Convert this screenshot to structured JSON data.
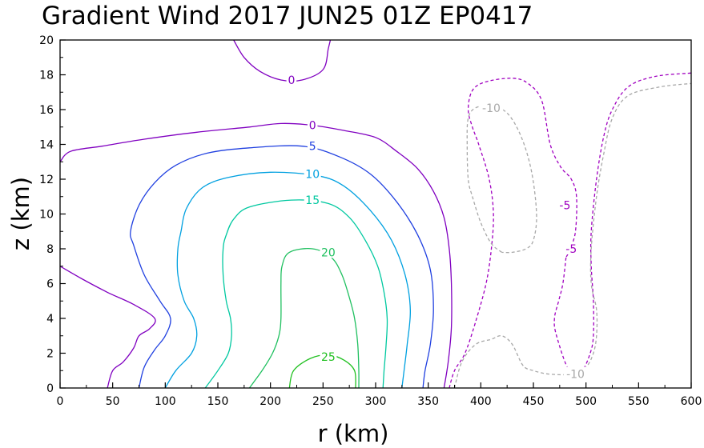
{
  "chart_data": {
    "type": "contour",
    "title": "Gradient Wind 2017 JUN25 01Z   EP0417",
    "xlabel": "r (km)",
    "ylabel": "z (km)",
    "xlim": [
      0,
      600
    ],
    "ylim": [
      0,
      20
    ],
    "x_ticks": [
      "0",
      "50",
      "100",
      "150",
      "200",
      "250",
      "300",
      "350",
      "400",
      "450",
      "500",
      "550",
      "600"
    ],
    "y_ticks": [
      "0",
      "2",
      "4",
      "6",
      "8",
      "10",
      "12",
      "14",
      "16",
      "18",
      "20"
    ],
    "grid": false,
    "contours": [
      {
        "level": 0,
        "color": "#8000c0",
        "dashed": false,
        "label": "0",
        "points": [
          [
            0,
            13
          ],
          [
            10,
            13.6
          ],
          [
            40,
            13.9
          ],
          [
            80,
            14.3
          ],
          [
            130,
            14.7
          ],
          [
            180,
            15
          ],
          [
            210,
            15.2
          ],
          [
            240,
            15.1
          ],
          [
            270,
            14.8
          ],
          [
            300,
            14.4
          ],
          [
            320,
            13.6
          ],
          [
            340,
            12.6
          ],
          [
            355,
            11.3
          ],
          [
            365,
            9.8
          ],
          [
            370,
            8
          ],
          [
            372,
            6
          ],
          [
            372,
            3.5
          ],
          [
            369,
            1.5
          ],
          [
            365,
            0
          ]
        ],
        "label_at": [
          240,
          15.1
        ]
      },
      {
        "level": 0,
        "color": "#8000c0",
        "dashed": false,
        "label": "0",
        "points": [
          [
            0,
            7
          ],
          [
            20,
            6.3
          ],
          [
            45,
            5.5
          ],
          [
            70,
            4.8
          ],
          [
            90,
            4
          ],
          [
            85,
            3.4
          ],
          [
            75,
            3
          ],
          [
            70,
            2.3
          ],
          [
            60,
            1.5
          ],
          [
            50,
            1
          ],
          [
            45,
            0
          ]
        ],
        "label_at": null
      },
      {
        "level": 0,
        "color": "#8000c0",
        "dashed": false,
        "label": "0",
        "points": [
          [
            165,
            20
          ],
          [
            175,
            19
          ],
          [
            190,
            18.2
          ],
          [
            210,
            17.7
          ],
          [
            230,
            17.7
          ],
          [
            250,
            18.3
          ],
          [
            255,
            19.5
          ],
          [
            257,
            20
          ]
        ],
        "label_at": [
          220,
          17.7
        ]
      },
      {
        "level": 5,
        "color": "#2040e0",
        "dashed": false,
        "label": "5",
        "points": [
          [
            75,
            0
          ],
          [
            80,
            1.2
          ],
          [
            90,
            2.2
          ],
          [
            100,
            3
          ],
          [
            105,
            4
          ],
          [
            95,
            5
          ],
          [
            80,
            6.5
          ],
          [
            70,
            8.2
          ],
          [
            67,
            9
          ],
          [
            75,
            10.5
          ],
          [
            90,
            11.8
          ],
          [
            110,
            12.8
          ],
          [
            140,
            13.5
          ],
          [
            180,
            13.8
          ],
          [
            230,
            13.9
          ],
          [
            265,
            13.3
          ],
          [
            295,
            12.3
          ],
          [
            320,
            10.7
          ],
          [
            340,
            8.8
          ],
          [
            352,
            6.8
          ],
          [
            355,
            4.5
          ],
          [
            352,
            2.5
          ],
          [
            347,
            1
          ],
          [
            345,
            0
          ]
        ],
        "label_at": [
          240,
          13.9
        ]
      },
      {
        "level": 10,
        "color": "#00a0e0",
        "dashed": false,
        "label": "10",
        "points": [
          [
            100,
            0
          ],
          [
            110,
            1
          ],
          [
            125,
            2
          ],
          [
            130,
            3
          ],
          [
            127,
            4
          ],
          [
            118,
            5
          ],
          [
            112,
            6.5
          ],
          [
            112,
            8
          ],
          [
            115,
            9
          ],
          [
            120,
            10.3
          ],
          [
            135,
            11.5
          ],
          [
            160,
            12.1
          ],
          [
            200,
            12.4
          ],
          [
            245,
            12.2
          ],
          [
            270,
            11.6
          ],
          [
            295,
            10.2
          ],
          [
            315,
            8.5
          ],
          [
            328,
            6.5
          ],
          [
            333,
            4.5
          ],
          [
            330,
            2.5
          ],
          [
            327,
            1
          ],
          [
            325,
            0
          ]
        ],
        "label_at": [
          240,
          12.3
        ]
      },
      {
        "level": 15,
        "color": "#00c8a0",
        "dashed": false,
        "label": "15",
        "points": [
          [
            138,
            0
          ],
          [
            150,
            1
          ],
          [
            160,
            2
          ],
          [
            163,
            3
          ],
          [
            162,
            4
          ],
          [
            158,
            5
          ],
          [
            155,
            6.5
          ],
          [
            155,
            8
          ],
          [
            158,
            8.8
          ],
          [
            165,
            9.7
          ],
          [
            180,
            10.4
          ],
          [
            220,
            10.8
          ],
          [
            255,
            10.6
          ],
          [
            275,
            9.8
          ],
          [
            290,
            8.5
          ],
          [
            302,
            7
          ],
          [
            308,
            5.5
          ],
          [
            311,
            4
          ],
          [
            310,
            2.5
          ],
          [
            308,
            1
          ],
          [
            307,
            0
          ]
        ],
        "label_at": [
          240,
          10.8
        ]
      },
      {
        "level": 20,
        "color": "#20c060",
        "dashed": false,
        "label": "20",
        "points": [
          [
            180,
            0
          ],
          [
            192,
            1
          ],
          [
            202,
            2
          ],
          [
            208,
            3
          ],
          [
            210,
            4
          ],
          [
            210,
            6
          ],
          [
            211,
            7
          ],
          [
            218,
            7.8
          ],
          [
            240,
            8
          ],
          [
            258,
            7.5
          ],
          [
            268,
            6.5
          ],
          [
            275,
            5.2
          ],
          [
            280,
            4
          ],
          [
            283,
            2.5
          ],
          [
            284,
            1
          ],
          [
            284,
            0
          ]
        ],
        "label_at": [
          255,
          7.8
        ]
      },
      {
        "level": 25,
        "color": "#20c020",
        "dashed": false,
        "label": "25",
        "points": [
          [
            218,
            0
          ],
          [
            222,
            1
          ],
          [
            238,
            1.7
          ],
          [
            255,
            1.9
          ],
          [
            270,
            1.6
          ],
          [
            280,
            1
          ],
          [
            281,
            0
          ]
        ],
        "label_at": [
          255,
          1.8
        ]
      },
      {
        "level": -5,
        "color": "#a000c0",
        "dashed": true,
        "label": "-5",
        "points": [
          [
            370,
            0
          ],
          [
            375,
            1
          ],
          [
            385,
            2
          ],
          [
            395,
            3.8
          ],
          [
            405,
            6
          ],
          [
            410,
            8
          ],
          [
            412,
            10
          ],
          [
            408,
            12
          ],
          [
            398,
            14
          ],
          [
            392,
            15
          ],
          [
            388,
            16
          ],
          [
            392,
            17.1
          ],
          [
            405,
            17.6
          ],
          [
            430,
            17.8
          ],
          [
            445,
            17.5
          ],
          [
            458,
            16.5
          ],
          [
            466,
            14
          ],
          [
            476,
            12.7
          ],
          [
            486,
            12
          ],
          [
            491,
            11
          ],
          [
            490,
            9
          ],
          [
            485,
            8
          ],
          [
            481,
            7.5
          ]
        ],
        "label_at": [
          480,
          10.5
        ]
      },
      {
        "level": -5,
        "color": "#a000c0",
        "dashed": true,
        "label": "-5",
        "points": [
          [
            481,
            7.5
          ],
          [
            478,
            6
          ],
          [
            474,
            5
          ],
          [
            470,
            4
          ],
          [
            472,
            3
          ],
          [
            484,
            1
          ],
          [
            496,
            1
          ],
          [
            504,
            2
          ],
          [
            507,
            3
          ],
          [
            507,
            5
          ],
          [
            505,
            7
          ],
          [
            505,
            9
          ],
          [
            510,
            12
          ],
          [
            517,
            14.5
          ],
          [
            525,
            16
          ],
          [
            540,
            17.3
          ],
          [
            565,
            17.9
          ],
          [
            600,
            18.1
          ]
        ],
        "label_at": [
          486,
          8
        ]
      },
      {
        "level": -10,
        "color": "#a8a8a8",
        "dashed": true,
        "label": "-10",
        "points": [
          [
            375,
            0
          ],
          [
            382,
            1.5
          ],
          [
            395,
            2.5
          ],
          [
            410,
            2.8
          ],
          [
            420,
            3
          ],
          [
            430,
            2.5
          ],
          [
            440,
            1.3
          ],
          [
            450,
            1
          ],
          [
            465,
            0.8
          ],
          [
            487,
            0.8
          ],
          [
            500,
            1.2
          ],
          [
            507,
            2
          ],
          [
            510,
            3
          ],
          [
            510,
            4.5
          ],
          [
            505,
            6
          ],
          [
            505,
            8
          ],
          [
            510,
            11
          ],
          [
            517,
            13.5
          ],
          [
            525,
            15.5
          ],
          [
            540,
            16.8
          ],
          [
            570,
            17.3
          ],
          [
            600,
            17.5
          ]
        ],
        "label_at": [
          490,
          0.8
        ]
      },
      {
        "level": -10,
        "color": "#a8a8a8",
        "dashed": true,
        "label": "-10",
        "points": [
          [
            420,
            7.8
          ],
          [
            410,
            8.3
          ],
          [
            400,
            9.5
          ],
          [
            392,
            11
          ],
          [
            388,
            12
          ],
          [
            387,
            14
          ],
          [
            388,
            15.5
          ],
          [
            395,
            16.1
          ],
          [
            410,
            16.2
          ],
          [
            425,
            15.8
          ],
          [
            438,
            14.5
          ],
          [
            448,
            12.5
          ],
          [
            453,
            10
          ],
          [
            450,
            8.5
          ],
          [
            443,
            8
          ],
          [
            430,
            7.8
          ],
          [
            420,
            7.8
          ]
        ],
        "label_at": [
          410,
          16.1
        ]
      }
    ]
  }
}
